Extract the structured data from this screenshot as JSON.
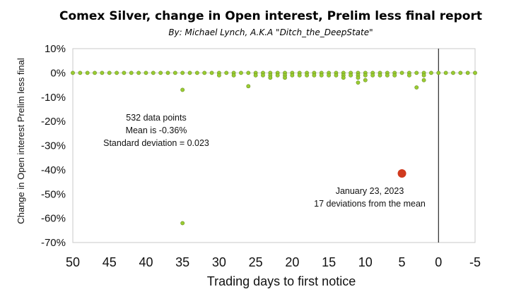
{
  "chart_data": {
    "type": "scatter",
    "title": "Comex Silver, change in Open interest, Prelim less final report",
    "subtitle": "By: Michael Lynch, A.K.A \"Ditch_the_DeepState\"",
    "xlabel": "Trading days to first notice",
    "ylabel": "Change in Open interest Prelim less final",
    "xlim": [
      50,
      -5
    ],
    "ylim": [
      -70,
      10
    ],
    "x_ticks": [
      "50",
      "45",
      "40",
      "35",
      "30",
      "25",
      "20",
      "15",
      "10",
      "5",
      "0",
      "-5"
    ],
    "y_ticks": [
      "10%",
      "0%",
      "-10%",
      "-20%",
      "-30%",
      "-40%",
      "-50%",
      "-60%",
      "-70%"
    ],
    "grid": false,
    "first_notice_line_x": 0,
    "colors": {
      "points": "#9acd32",
      "point_edge": "#6b8e23",
      "highlight": "#d03a1e",
      "line": "#000000"
    },
    "points": [
      {
        "x": 50,
        "y": 0
      },
      {
        "x": 49,
        "y": 0
      },
      {
        "x": 48,
        "y": 0
      },
      {
        "x": 47,
        "y": 0
      },
      {
        "x": 46,
        "y": 0
      },
      {
        "x": 45,
        "y": 0
      },
      {
        "x": 44,
        "y": 0
      },
      {
        "x": 43,
        "y": 0
      },
      {
        "x": 42,
        "y": 0
      },
      {
        "x": 41,
        "y": 0
      },
      {
        "x": 40,
        "y": 0
      },
      {
        "x": 39,
        "y": 0
      },
      {
        "x": 38,
        "y": 0
      },
      {
        "x": 37,
        "y": 0
      },
      {
        "x": 36,
        "y": 0
      },
      {
        "x": 35,
        "y": 0
      },
      {
        "x": 35,
        "y": -7
      },
      {
        "x": 35,
        "y": -62
      },
      {
        "x": 34,
        "y": 0
      },
      {
        "x": 33,
        "y": 0
      },
      {
        "x": 32,
        "y": 0
      },
      {
        "x": 31,
        "y": 0
      },
      {
        "x": 30,
        "y": 0
      },
      {
        "x": 30,
        "y": -1
      },
      {
        "x": 29,
        "y": 0
      },
      {
        "x": 28,
        "y": 0
      },
      {
        "x": 28,
        "y": -1
      },
      {
        "x": 27,
        "y": 0
      },
      {
        "x": 26,
        "y": 0
      },
      {
        "x": 26,
        "y": -5.5
      },
      {
        "x": 25,
        "y": 0
      },
      {
        "x": 25,
        "y": -1
      },
      {
        "x": 24,
        "y": 0
      },
      {
        "x": 24,
        "y": -1
      },
      {
        "x": 23,
        "y": 0
      },
      {
        "x": 23,
        "y": -1
      },
      {
        "x": 23,
        "y": -2
      },
      {
        "x": 22,
        "y": 0
      },
      {
        "x": 22,
        "y": -1
      },
      {
        "x": 21,
        "y": 0
      },
      {
        "x": 21,
        "y": -1
      },
      {
        "x": 21,
        "y": -2
      },
      {
        "x": 20,
        "y": 0
      },
      {
        "x": 20,
        "y": -1
      },
      {
        "x": 19,
        "y": 0
      },
      {
        "x": 19,
        "y": -1
      },
      {
        "x": 18,
        "y": 0
      },
      {
        "x": 18,
        "y": -1
      },
      {
        "x": 17,
        "y": 0
      },
      {
        "x": 17,
        "y": -1
      },
      {
        "x": 16,
        "y": 0
      },
      {
        "x": 16,
        "y": -1
      },
      {
        "x": 15,
        "y": 0
      },
      {
        "x": 15,
        "y": -1
      },
      {
        "x": 14,
        "y": 0
      },
      {
        "x": 14,
        "y": -1
      },
      {
        "x": 13,
        "y": 0
      },
      {
        "x": 13,
        "y": -1
      },
      {
        "x": 13,
        "y": -2
      },
      {
        "x": 12,
        "y": 0
      },
      {
        "x": 12,
        "y": -1
      },
      {
        "x": 11,
        "y": 0
      },
      {
        "x": 11,
        "y": -1
      },
      {
        "x": 11,
        "y": -2
      },
      {
        "x": 11,
        "y": -4
      },
      {
        "x": 10,
        "y": 0
      },
      {
        "x": 10,
        "y": -1
      },
      {
        "x": 10,
        "y": -3
      },
      {
        "x": 9,
        "y": 0
      },
      {
        "x": 9,
        "y": -1
      },
      {
        "x": 8,
        "y": 0
      },
      {
        "x": 8,
        "y": -1
      },
      {
        "x": 7,
        "y": 0
      },
      {
        "x": 7,
        "y": -1
      },
      {
        "x": 6,
        "y": 0
      },
      {
        "x": 6,
        "y": -1
      },
      {
        "x": 5,
        "y": 0
      },
      {
        "x": 4,
        "y": 0
      },
      {
        "x": 4,
        "y": -1
      },
      {
        "x": 3,
        "y": 0
      },
      {
        "x": 3,
        "y": -6
      },
      {
        "x": 2,
        "y": 0
      },
      {
        "x": 2,
        "y": -1
      },
      {
        "x": 2,
        "y": -3
      },
      {
        "x": 1,
        "y": 0
      },
      {
        "x": 0,
        "y": 0
      },
      {
        "x": -1,
        "y": 0
      },
      {
        "x": -2,
        "y": 0
      },
      {
        "x": -3,
        "y": 0
      },
      {
        "x": -4,
        "y": 0
      },
      {
        "x": -5,
        "y": 0
      }
    ],
    "highlight_point": {
      "x": 5,
      "y": -41.5
    },
    "stats_annotation": [
      "532 data points",
      "Mean is  -0.36%",
      "Standard deviation = 0.023"
    ],
    "highlight_annotation": [
      "January 23, 2023",
      "17 deviations from the mean"
    ]
  }
}
